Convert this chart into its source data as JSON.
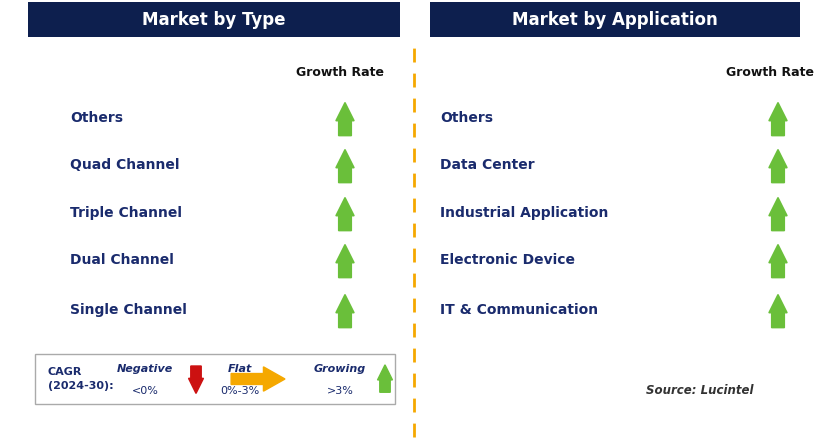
{
  "title_left": "Market by Type",
  "title_right": "Market by Application",
  "title_bg_color": "#0d1f4e",
  "title_text_color": "#ffffff",
  "left_items": [
    "Single Channel",
    "Dual Channel",
    "Triple Channel",
    "Quad Channel",
    "Others"
  ],
  "right_items": [
    "IT & Communication",
    "Electronic Device",
    "Industrial Application",
    "Data Center",
    "Others"
  ],
  "growth_rate_label": "Growth Rate",
  "item_text_color": "#1a2b6d",
  "arrow_up_color": "#6abf3a",
  "arrow_down_color": "#cc1111",
  "arrow_right_color": "#f5a800",
  "divider_color": "#f5a800",
  "legend_cagr_label": "CAGR\n(2024-30):",
  "legend_negative_label": "Negative",
  "legend_negative_sub": "<0%",
  "legend_flat_label": "Flat",
  "legend_flat_sub": "0%-3%",
  "legend_growing_label": "Growing",
  "legend_growing_sub": ">3%",
  "source_text": "Source: Lucintel",
  "bg_color": "#ffffff",
  "fig_w": 8.29,
  "fig_h": 4.42,
  "dpi": 100
}
